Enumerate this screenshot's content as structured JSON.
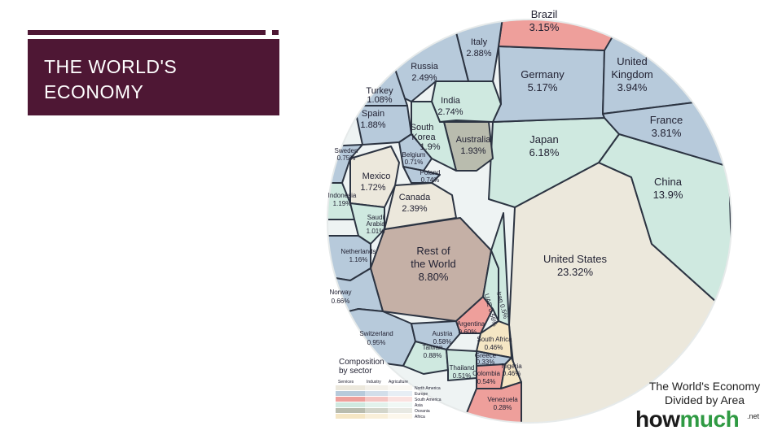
{
  "slide": {
    "title": "THE WORLD'S\nECONOMY",
    "title_color": "#4e1734"
  },
  "diagram": {
    "credit": "The World's Economy\nDivided by Area",
    "brand_prefix": "how",
    "brand_accent": "much",
    "brand_tld": ".net",
    "legend": {
      "title": "Composition\nby sector",
      "columns": [
        "Services",
        "Industry",
        "Agriculture"
      ],
      "regions": [
        "North America",
        "Europe",
        "South America",
        "Asia",
        "Oceania",
        "Africa"
      ]
    },
    "countries": [
      {
        "name": "United States",
        "share": "23.32%"
      },
      {
        "name": "China",
        "share": "13.9%"
      },
      {
        "name": "Rest of the World",
        "share": "8.80%"
      },
      {
        "name": "Japan",
        "share": "6.18%"
      },
      {
        "name": "Germany",
        "share": "5.17%"
      },
      {
        "name": "United Kingdom",
        "share": "3.94%"
      },
      {
        "name": "France",
        "share": "3.81%"
      },
      {
        "name": "Brazil",
        "share": "3.15%"
      },
      {
        "name": "Italy",
        "share": "2.88%"
      },
      {
        "name": "India",
        "share": "2.74%"
      },
      {
        "name": "Russia",
        "share": "2.49%"
      },
      {
        "name": "Canada",
        "share": "2.39%"
      },
      {
        "name": "Australia",
        "share": "1.93%"
      },
      {
        "name": "South Korea",
        "share": "1.9%"
      },
      {
        "name": "Spain",
        "share": "1.88%"
      },
      {
        "name": "Mexico",
        "share": "1.72%"
      },
      {
        "name": "Indonesia",
        "share": "1.19%"
      },
      {
        "name": "Netherlands",
        "share": "1.16%"
      },
      {
        "name": "Turkey",
        "share": "1.08%"
      },
      {
        "name": "Saudi Arabia",
        "share": "1.01%"
      },
      {
        "name": "Switzerland",
        "share": "0.95%"
      },
      {
        "name": "Sweden",
        "share": "0.75%"
      },
      {
        "name": "Belgium",
        "share": "0.71%"
      },
      {
        "name": "Poland",
        "share": "0.74%"
      },
      {
        "name": "Norway",
        "share": "0.66%"
      },
      {
        "name": "Austria",
        "share": "0.58%"
      },
      {
        "name": "Taiwan",
        "share": "0.88%"
      },
      {
        "name": "Argentina",
        "share": "0.60%"
      },
      {
        "name": "UAE",
        "share": "0.56%"
      },
      {
        "name": "Iran",
        "share": "0.5%"
      },
      {
        "name": "South Africa",
        "share": "0.46%"
      },
      {
        "name": "Thailand",
        "share": "0.51%"
      },
      {
        "name": "Colombia",
        "share": "0.54%"
      },
      {
        "name": "Greece",
        "share": "0.33%"
      },
      {
        "name": "Venezuela",
        "share": "0.28%"
      },
      {
        "name": "Nigeria",
        "share": "0.46%"
      }
    ]
  },
  "colors": {
    "north_america": "#ece8dc",
    "europe": "#b7cadb",
    "south_america": "#ee9f9b",
    "asia": "#cfe9e0",
    "oceania": "#b9bcae",
    "africa": "#f5e6c4",
    "rest_of_world": "#c5b0a6",
    "cell_border": "#2c3442"
  }
}
